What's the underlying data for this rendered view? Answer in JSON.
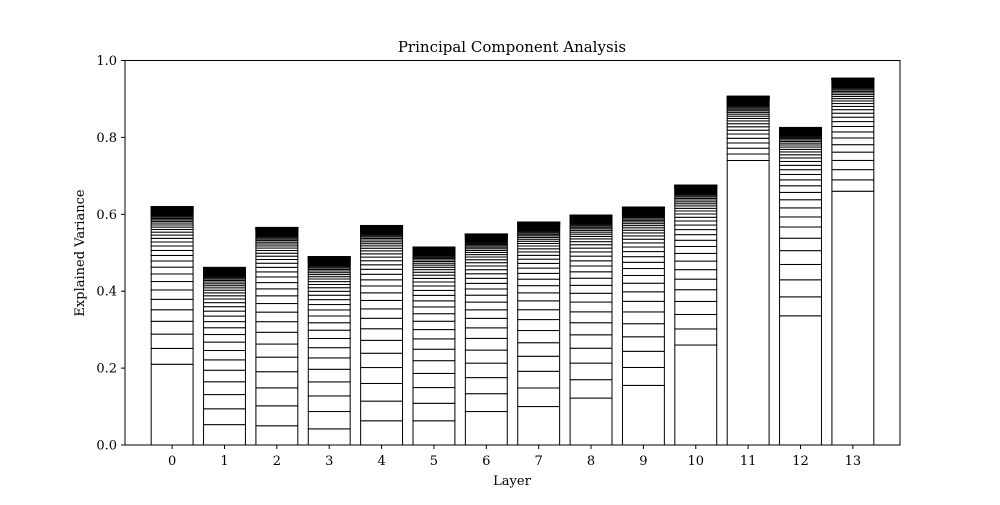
{
  "chart_data": {
    "type": "bar",
    "stacked": true,
    "title": "Principal Component Analysis",
    "xlabel": "Layer",
    "ylabel": "Explained Variance",
    "ylim": [
      0.0,
      1.0
    ],
    "yticks": [
      "0.0",
      "0.2",
      "0.4",
      "0.6",
      "0.8",
      "1.0"
    ],
    "categories": [
      "0",
      "1",
      "2",
      "3",
      "4",
      "5",
      "6",
      "7",
      "8",
      "9",
      "10",
      "11",
      "12",
      "13"
    ],
    "totals": [
      0.62,
      0.462,
      0.566,
      0.49,
      0.571,
      0.515,
      0.549,
      0.58,
      0.598,
      0.619,
      0.676,
      0.907,
      0.826,
      0.954
    ],
    "first_component": [
      0.21,
      0.053,
      0.05,
      0.042,
      0.063,
      0.063,
      0.087,
      0.1,
      0.122,
      0.155,
      0.26,
      0.74,
      0.336,
      0.66
    ],
    "components_per_bar": 50,
    "bar_fill": "#ffffff",
    "edge_color": "#000000",
    "grid": false,
    "legend": "none"
  }
}
